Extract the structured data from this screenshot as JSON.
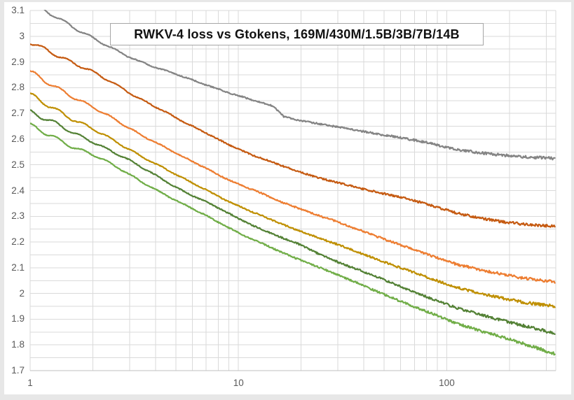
{
  "colors": {
    "page_background": "#e7e7e7",
    "surface": "#ffffff",
    "gridline": "#dadada",
    "axis_line": "#bfbfbf",
    "tick_text": "#595959",
    "title_text": "#111111",
    "title_border": "#a6a6a6"
  },
  "chart_data": {
    "type": "line",
    "title": "RWKV-4 loss vs Gtokens, 169M/430M/1.5B/3B/7B/14B",
    "xlabel": "",
    "ylabel": "",
    "x_scale": "log",
    "x_range": [
      1,
      333.7
    ],
    "y_range": [
      1.7,
      3.1
    ],
    "y_tick_step": 0.1,
    "y_minor_gridline_step": 0.05,
    "grid": true,
    "legend": "none",
    "y_tick_values": [
      3.1,
      3.0,
      2.9,
      2.8,
      2.7,
      2.6,
      2.5,
      2.4,
      2.3,
      2.2,
      2.1,
      2.0,
      1.9,
      1.8,
      1.7
    ],
    "y_tick_labels": [
      "3.1",
      "3",
      "2.9",
      "2.8",
      "2.7",
      "2.6",
      "2.5",
      "2.4",
      "2.3",
      "2.2",
      "2.1",
      "2",
      "1.9",
      "1.8",
      "1.7"
    ],
    "x_ticks": [
      {
        "value": 1,
        "label": "1"
      },
      {
        "value": 10,
        "label": "10"
      },
      {
        "value": 100,
        "label": "100"
      }
    ],
    "x_gtokens": [
      1,
      1.3,
      1.6,
      2,
      2.6,
      3.3,
      4.2,
      5.4,
      7,
      9,
      11.5,
      14.8,
      16.5,
      19,
      24,
      31,
      40,
      52,
      66,
      85,
      110,
      140,
      180,
      230,
      330
    ],
    "series": [
      {
        "name": "169M",
        "color": "#848484",
        "values": [
          3.132,
          3.085,
          3.035,
          2.99,
          2.945,
          2.906,
          2.872,
          2.842,
          2.812,
          2.781,
          2.752,
          2.727,
          2.688,
          2.676,
          2.66,
          2.644,
          2.63,
          2.614,
          2.599,
          2.582,
          2.561,
          2.548,
          2.538,
          2.531,
          2.525
        ]
      },
      {
        "name": "430M",
        "color": "#C55A11",
        "values": [
          2.98,
          2.935,
          2.895,
          2.86,
          2.812,
          2.762,
          2.715,
          2.668,
          2.625,
          2.578,
          2.538,
          2.509,
          2.495,
          2.478,
          2.45,
          2.427,
          2.406,
          2.385,
          2.366,
          2.341,
          2.315,
          2.295,
          2.28,
          2.27,
          2.262
        ]
      },
      {
        "name": "1.5B",
        "color": "#ED7D31",
        "values": [
          2.86,
          2.81,
          2.765,
          2.722,
          2.672,
          2.625,
          2.578,
          2.53,
          2.487,
          2.442,
          2.405,
          2.368,
          2.352,
          2.335,
          2.305,
          2.273,
          2.24,
          2.207,
          2.177,
          2.145,
          2.115,
          2.095,
          2.077,
          2.06,
          2.045
        ]
      },
      {
        "name": "3B",
        "color": "#BF8F00",
        "values": [
          2.77,
          2.722,
          2.678,
          2.638,
          2.588,
          2.542,
          2.495,
          2.447,
          2.403,
          2.358,
          2.318,
          2.282,
          2.266,
          2.249,
          2.218,
          2.185,
          2.152,
          2.118,
          2.088,
          2.056,
          2.025,
          2.003,
          1.983,
          1.966,
          1.95
        ]
      },
      {
        "name": "7B",
        "color": "#538135",
        "values": [
          2.705,
          2.662,
          2.625,
          2.592,
          2.543,
          2.497,
          2.45,
          2.4,
          2.355,
          2.31,
          2.268,
          2.23,
          2.213,
          2.195,
          2.156,
          2.118,
          2.084,
          2.047,
          2.014,
          1.979,
          1.945,
          1.921,
          1.898,
          1.876,
          1.845
        ]
      },
      {
        "name": "14B",
        "color": "#70AD47",
        "values": [
          2.65,
          2.608,
          2.572,
          2.54,
          2.49,
          2.443,
          2.396,
          2.347,
          2.302,
          2.256,
          2.213,
          2.173,
          2.155,
          2.136,
          2.105,
          2.067,
          2.029,
          1.991,
          1.956,
          1.921,
          1.885,
          1.859,
          1.833,
          1.806,
          1.766
        ]
      }
    ]
  }
}
